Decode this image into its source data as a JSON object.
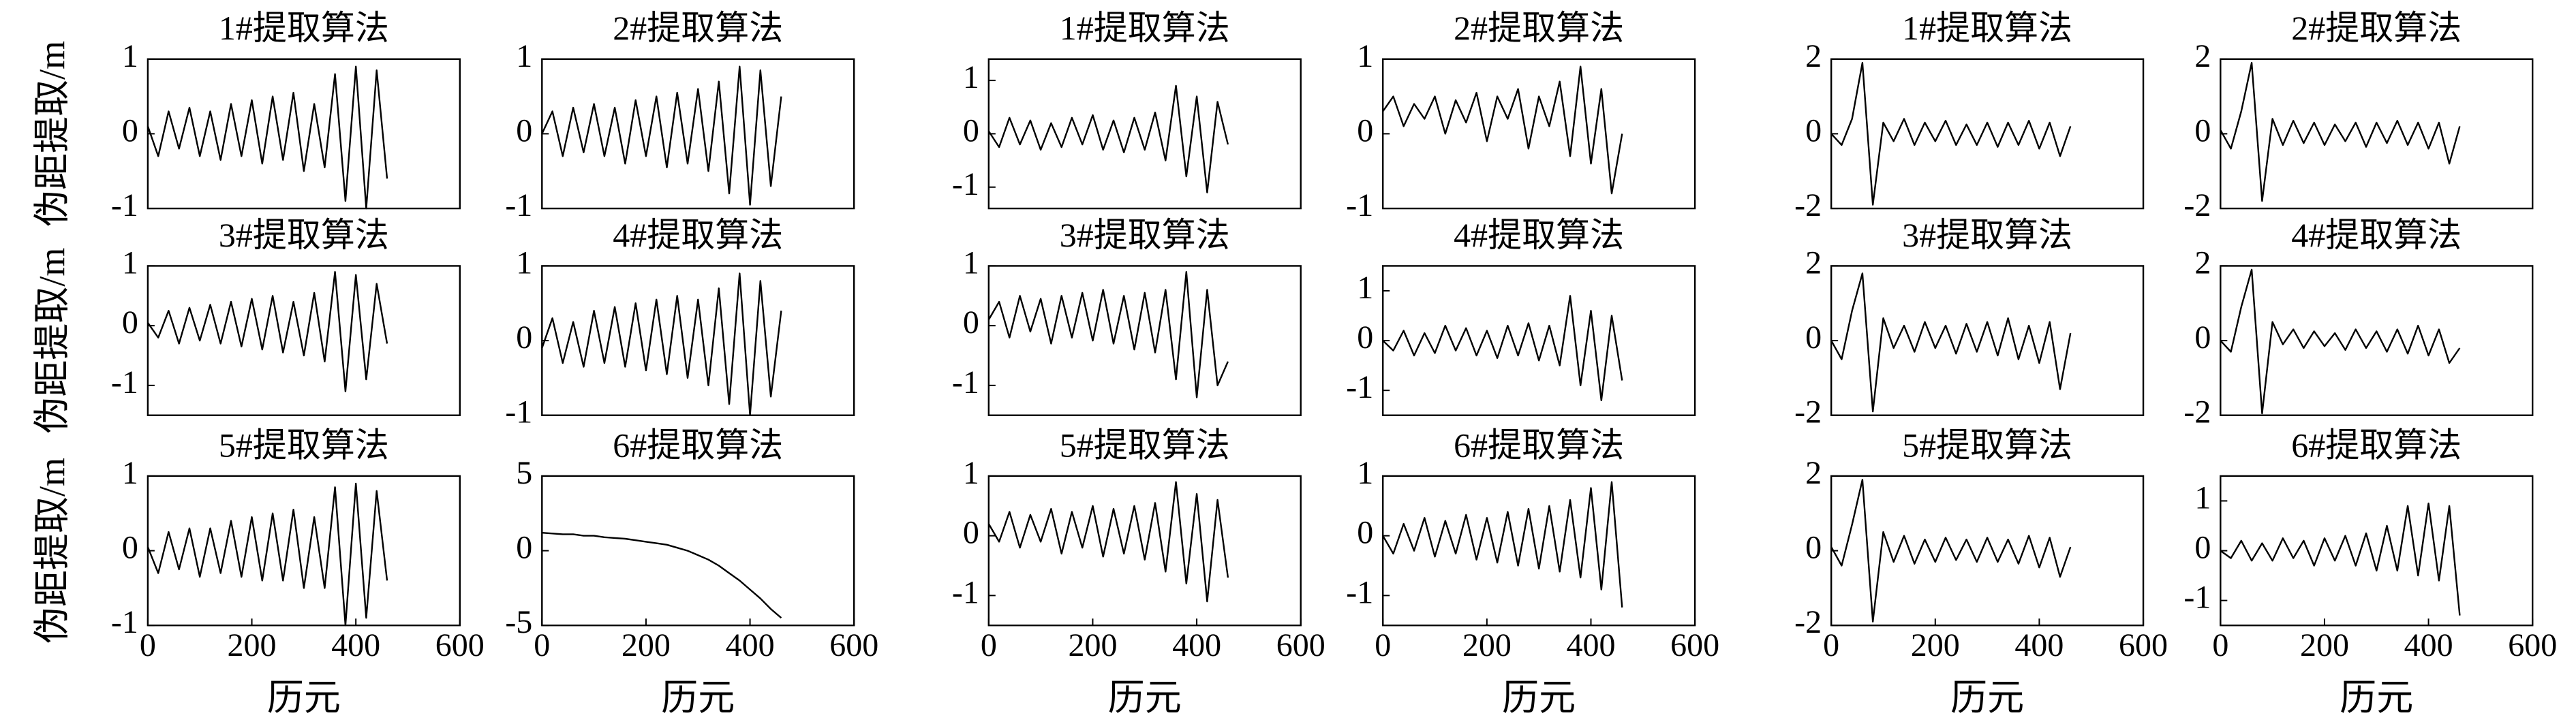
{
  "chart_data": [
    {
      "type": "line",
      "title": "1#提取算法",
      "ylabel": "伪距提取/m",
      "color": "#000000",
      "xlim": [
        0,
        600
      ],
      "ylim": [
        -1,
        1
      ],
      "yticks": [
        -1,
        0,
        1
      ],
      "x": [
        0,
        20,
        40,
        60,
        80,
        100,
        120,
        140,
        160,
        180,
        200,
        220,
        240,
        260,
        280,
        300,
        320,
        340,
        360,
        380,
        400,
        420,
        440,
        460
      ],
      "values": [
        0.1,
        -0.3,
        0.3,
        -0.2,
        0.35,
        -0.3,
        0.3,
        -0.35,
        0.4,
        -0.3,
        0.45,
        -0.4,
        0.5,
        -0.35,
        0.55,
        -0.5,
        0.4,
        -0.45,
        0.8,
        -0.9,
        0.9,
        -1.0,
        0.85,
        -0.6
      ]
    },
    {
      "type": "line",
      "title": "2#提取算法",
      "color": "#000000",
      "xlim": [
        0,
        600
      ],
      "ylim": [
        -1,
        1
      ],
      "yticks": [
        -1,
        0,
        1
      ],
      "x": [
        0,
        20,
        40,
        60,
        80,
        100,
        120,
        140,
        160,
        180,
        200,
        220,
        240,
        260,
        280,
        300,
        320,
        340,
        360,
        380,
        400,
        420,
        440,
        460
      ],
      "values": [
        0,
        0.3,
        -0.3,
        0.35,
        -0.25,
        0.4,
        -0.3,
        0.35,
        -0.4,
        0.45,
        -0.3,
        0.5,
        -0.45,
        0.55,
        -0.4,
        0.6,
        -0.5,
        0.7,
        -0.8,
        0.9,
        -0.95,
        0.85,
        -0.7,
        0.5
      ]
    },
    {
      "type": "line",
      "title": "3#提取算法",
      "ylabel": "伪距提取/m",
      "color": "#000000",
      "xlim": [
        0,
        600
      ],
      "ylim": [
        -1.5,
        1
      ],
      "yticks": [
        -1,
        0,
        1
      ],
      "x": [
        0,
        20,
        40,
        60,
        80,
        100,
        120,
        140,
        160,
        180,
        200,
        220,
        240,
        260,
        280,
        300,
        320,
        340,
        360,
        380,
        400,
        420,
        440,
        460
      ],
      "values": [
        0.05,
        -0.2,
        0.25,
        -0.3,
        0.3,
        -0.25,
        0.35,
        -0.3,
        0.4,
        -0.35,
        0.45,
        -0.4,
        0.5,
        -0.45,
        0.4,
        -0.5,
        0.55,
        -0.6,
        0.9,
        -1.1,
        0.85,
        -0.9,
        0.7,
        -0.3
      ]
    },
    {
      "type": "line",
      "title": "4#提取算法",
      "color": "#000000",
      "xlim": [
        0,
        600
      ],
      "ylim": [
        -1,
        1
      ],
      "yticks": [
        -1,
        0,
        1
      ],
      "x": [
        0,
        20,
        40,
        60,
        80,
        100,
        120,
        140,
        160,
        180,
        200,
        220,
        240,
        260,
        280,
        300,
        320,
        340,
        360,
        380,
        400,
        420,
        440,
        460
      ],
      "values": [
        -0.1,
        0.3,
        -0.3,
        0.25,
        -0.35,
        0.4,
        -0.3,
        0.45,
        -0.35,
        0.5,
        -0.4,
        0.55,
        -0.45,
        0.6,
        -0.5,
        0.55,
        -0.6,
        0.7,
        -0.85,
        0.9,
        -1.0,
        0.8,
        -0.75,
        0.4
      ]
    },
    {
      "type": "line",
      "title": "5#提取算法",
      "ylabel": "伪距提取/m",
      "xlabel": "历元",
      "color": "#000000",
      "xlim": [
        0,
        600
      ],
      "xticks": [
        0,
        200,
        400,
        600
      ],
      "ylim": [
        -1,
        1
      ],
      "yticks": [
        -1,
        0,
        1
      ],
      "x": [
        0,
        20,
        40,
        60,
        80,
        100,
        120,
        140,
        160,
        180,
        200,
        220,
        240,
        260,
        280,
        300,
        320,
        340,
        360,
        380,
        400,
        420,
        440,
        460
      ],
      "values": [
        0.05,
        -0.3,
        0.25,
        -0.25,
        0.3,
        -0.35,
        0.3,
        -0.3,
        0.4,
        -0.35,
        0.45,
        -0.4,
        0.5,
        -0.4,
        0.55,
        -0.5,
        0.45,
        -0.5,
        0.85,
        -1.0,
        0.9,
        -0.9,
        0.8,
        -0.4
      ]
    },
    {
      "type": "line",
      "title": "6#提取算法",
      "xlabel": "历元",
      "color": "#000000",
      "xlim": [
        0,
        600
      ],
      "xticks": [
        0,
        200,
        400,
        600
      ],
      "ylim": [
        -5,
        5
      ],
      "yticks": [
        -5,
        0,
        5
      ],
      "x": [
        0,
        20,
        40,
        60,
        80,
        100,
        120,
        140,
        160,
        180,
        200,
        220,
        240,
        260,
        280,
        300,
        320,
        340,
        360,
        380,
        400,
        420,
        440,
        460
      ],
      "values": [
        1.2,
        1.15,
        1.1,
        1.1,
        1.0,
        1.0,
        0.9,
        0.85,
        0.8,
        0.7,
        0.6,
        0.5,
        0.4,
        0.2,
        0.0,
        -0.3,
        -0.6,
        -1.0,
        -1.5,
        -2.0,
        -2.6,
        -3.2,
        -3.9,
        -4.5
      ]
    },
    {
      "type": "line",
      "title": "1#提取算法",
      "color": "#000000",
      "xlim": [
        0,
        600
      ],
      "ylim": [
        -1.4,
        1.4
      ],
      "yticks": [
        -1,
        0,
        1
      ],
      "x": [
        0,
        20,
        40,
        60,
        80,
        100,
        120,
        140,
        160,
        180,
        200,
        220,
        240,
        260,
        280,
        300,
        320,
        340,
        360,
        380,
        400,
        420,
        440,
        460
      ],
      "values": [
        0.05,
        -0.25,
        0.3,
        -0.2,
        0.25,
        -0.3,
        0.2,
        -0.25,
        0.3,
        -0.2,
        0.35,
        -0.3,
        0.25,
        -0.35,
        0.3,
        -0.3,
        0.4,
        -0.5,
        0.9,
        -0.8,
        0.7,
        -1.1,
        0.6,
        -0.2
      ]
    },
    {
      "type": "line",
      "title": "2#提取算法",
      "color": "#000000",
      "xlim": [
        0,
        600
      ],
      "ylim": [
        -1,
        1
      ],
      "yticks": [
        -1,
        0,
        1
      ],
      "x": [
        0,
        20,
        40,
        60,
        80,
        100,
        120,
        140,
        160,
        180,
        200,
        220,
        240,
        260,
        280,
        300,
        320,
        340,
        360,
        380,
        400,
        420,
        440,
        460
      ],
      "values": [
        0.3,
        0.5,
        0.1,
        0.4,
        0.2,
        0.5,
        0.0,
        0.45,
        0.15,
        0.55,
        -0.1,
        0.5,
        0.2,
        0.6,
        -0.2,
        0.5,
        0.1,
        0.7,
        -0.3,
        0.9,
        -0.4,
        0.6,
        -0.8,
        0.0
      ]
    },
    {
      "type": "line",
      "title": "3#提取算法",
      "color": "#000000",
      "xlim": [
        0,
        600
      ],
      "ylim": [
        -1.5,
        1
      ],
      "yticks": [
        -1,
        0,
        1
      ],
      "x": [
        0,
        20,
        40,
        60,
        80,
        100,
        120,
        140,
        160,
        180,
        200,
        220,
        240,
        260,
        280,
        300,
        320,
        340,
        360,
        380,
        400,
        420,
        440,
        460
      ],
      "values": [
        0.1,
        0.4,
        -0.2,
        0.5,
        -0.1,
        0.45,
        -0.3,
        0.5,
        -0.2,
        0.55,
        -0.25,
        0.6,
        -0.3,
        0.5,
        -0.4,
        0.55,
        -0.45,
        0.6,
        -0.9,
        0.9,
        -1.2,
        0.6,
        -1.0,
        -0.6
      ]
    },
    {
      "type": "line",
      "title": "4#提取算法",
      "color": "#000000",
      "xlim": [
        0,
        600
      ],
      "ylim": [
        -1.5,
        1.5
      ],
      "yticks": [
        -1,
        0,
        1
      ],
      "x": [
        0,
        20,
        40,
        60,
        80,
        100,
        120,
        140,
        160,
        180,
        200,
        220,
        240,
        260,
        280,
        300,
        320,
        340,
        360,
        380,
        400,
        420,
        440,
        460
      ],
      "values": [
        0.0,
        -0.2,
        0.2,
        -0.3,
        0.15,
        -0.25,
        0.3,
        -0.2,
        0.25,
        -0.3,
        0.2,
        -0.35,
        0.3,
        -0.3,
        0.35,
        -0.4,
        0.3,
        -0.5,
        0.9,
        -0.9,
        0.6,
        -1.2,
        0.5,
        -0.8
      ]
    },
    {
      "type": "line",
      "title": "5#提取算法",
      "xlabel": "历元",
      "color": "#000000",
      "xlim": [
        0,
        600
      ],
      "xticks": [
        0,
        200,
        400,
        600
      ],
      "ylim": [
        -1.5,
        1
      ],
      "yticks": [
        -1,
        0,
        1
      ],
      "x": [
        0,
        20,
        40,
        60,
        80,
        100,
        120,
        140,
        160,
        180,
        200,
        220,
        240,
        260,
        280,
        300,
        320,
        340,
        360,
        380,
        400,
        420,
        440,
        460
      ],
      "values": [
        0.2,
        -0.1,
        0.4,
        -0.2,
        0.35,
        -0.1,
        0.45,
        -0.3,
        0.4,
        -0.2,
        0.5,
        -0.35,
        0.45,
        -0.3,
        0.5,
        -0.4,
        0.55,
        -0.6,
        0.9,
        -0.8,
        0.7,
        -1.1,
        0.6,
        -0.7
      ]
    },
    {
      "type": "line",
      "title": "6#提取算法",
      "xlabel": "历元",
      "color": "#000000",
      "xlim": [
        0,
        600
      ],
      "xticks": [
        0,
        200,
        400,
        600
      ],
      "ylim": [
        -1.5,
        1
      ],
      "yticks": [
        -1,
        0,
        1
      ],
      "x": [
        0,
        20,
        40,
        60,
        80,
        100,
        120,
        140,
        160,
        180,
        200,
        220,
        240,
        260,
        280,
        300,
        320,
        340,
        360,
        380,
        400,
        420,
        440,
        460
      ],
      "values": [
        0.0,
        -0.3,
        0.2,
        -0.25,
        0.3,
        -0.35,
        0.25,
        -0.3,
        0.35,
        -0.4,
        0.3,
        -0.45,
        0.4,
        -0.5,
        0.45,
        -0.55,
        0.5,
        -0.6,
        0.6,
        -0.7,
        0.8,
        -0.9,
        0.9,
        -1.2
      ]
    },
    {
      "type": "line",
      "title": "1#提取算法",
      "color": "#000000",
      "xlim": [
        0,
        600
      ],
      "ylim": [
        -2,
        2
      ],
      "yticks": [
        -2,
        0,
        2
      ],
      "x": [
        0,
        20,
        40,
        60,
        80,
        100,
        120,
        140,
        160,
        180,
        200,
        220,
        240,
        260,
        280,
        300,
        320,
        340,
        360,
        380,
        400,
        420,
        440,
        460
      ],
      "values": [
        0.0,
        -0.3,
        0.4,
        1.9,
        -1.9,
        0.3,
        -0.2,
        0.4,
        -0.3,
        0.3,
        -0.2,
        0.35,
        -0.3,
        0.25,
        -0.3,
        0.3,
        -0.35,
        0.3,
        -0.3,
        0.35,
        -0.4,
        0.3,
        -0.6,
        0.2
      ]
    },
    {
      "type": "line",
      "title": "2#提取算法",
      "color": "#000000",
      "xlim": [
        0,
        600
      ],
      "ylim": [
        -2,
        2
      ],
      "yticks": [
        -2,
        0,
        2
      ],
      "x": [
        0,
        20,
        40,
        60,
        80,
        100,
        120,
        140,
        160,
        180,
        200,
        220,
        240,
        260,
        280,
        300,
        320,
        340,
        360,
        380,
        400,
        420,
        440,
        460
      ],
      "values": [
        0.1,
        -0.4,
        0.6,
        1.9,
        -1.8,
        0.4,
        -0.3,
        0.35,
        -0.25,
        0.3,
        -0.3,
        0.25,
        -0.2,
        0.3,
        -0.35,
        0.3,
        -0.25,
        0.35,
        -0.3,
        0.3,
        -0.4,
        0.3,
        -0.8,
        0.2
      ]
    },
    {
      "type": "line",
      "title": "3#提取算法",
      "color": "#000000",
      "xlim": [
        0,
        600
      ],
      "ylim": [
        -2,
        2
      ],
      "yticks": [
        -2,
        0,
        2
      ],
      "x": [
        0,
        20,
        40,
        60,
        80,
        100,
        120,
        140,
        160,
        180,
        200,
        220,
        240,
        260,
        280,
        300,
        320,
        340,
        360,
        380,
        400,
        420,
        440,
        460
      ],
      "values": [
        0.0,
        -0.5,
        0.8,
        1.8,
        -1.9,
        0.6,
        -0.2,
        0.4,
        -0.3,
        0.5,
        -0.2,
        0.4,
        -0.35,
        0.45,
        -0.3,
        0.5,
        -0.4,
        0.6,
        -0.5,
        0.4,
        -0.6,
        0.5,
        -1.3,
        0.2
      ]
    },
    {
      "type": "line",
      "title": "4#提取算法",
      "color": "#000000",
      "xlim": [
        0,
        600
      ],
      "ylim": [
        -2,
        2
      ],
      "yticks": [
        -2,
        0,
        2
      ],
      "x": [
        0,
        20,
        40,
        60,
        80,
        100,
        120,
        140,
        160,
        180,
        200,
        220,
        240,
        260,
        280,
        300,
        320,
        340,
        360,
        380,
        400,
        420,
        440,
        460
      ],
      "values": [
        0.0,
        -0.3,
        0.9,
        1.9,
        -1.95,
        0.5,
        -0.1,
        0.3,
        -0.2,
        0.25,
        -0.15,
        0.2,
        -0.25,
        0.3,
        -0.2,
        0.25,
        -0.3,
        0.3,
        -0.35,
        0.4,
        -0.4,
        0.3,
        -0.6,
        -0.2
      ]
    },
    {
      "type": "line",
      "title": "5#提取算法",
      "xlabel": "历元",
      "color": "#000000",
      "xlim": [
        0,
        600
      ],
      "xticks": [
        0,
        200,
        400,
        600
      ],
      "ylim": [
        -2,
        2
      ],
      "yticks": [
        -2,
        0,
        2
      ],
      "x": [
        0,
        20,
        40,
        60,
        80,
        100,
        120,
        140,
        160,
        180,
        200,
        220,
        240,
        260,
        280,
        300,
        320,
        340,
        360,
        380,
        400,
        420,
        440,
        460
      ],
      "values": [
        0.1,
        -0.4,
        0.7,
        1.9,
        -1.9,
        0.5,
        -0.3,
        0.4,
        -0.35,
        0.3,
        -0.3,
        0.35,
        -0.25,
        0.3,
        -0.3,
        0.35,
        -0.3,
        0.3,
        -0.35,
        0.4,
        -0.45,
        0.35,
        -0.7,
        0.1
      ]
    },
    {
      "type": "line",
      "title": "6#提取算法",
      "xlabel": "历元",
      "color": "#000000",
      "xlim": [
        0,
        600
      ],
      "xticks": [
        0,
        200,
        400,
        600
      ],
      "ylim": [
        -1.5,
        1.5
      ],
      "yticks": [
        -1,
        0,
        1
      ],
      "x": [
        0,
        20,
        40,
        60,
        80,
        100,
        120,
        140,
        160,
        180,
        200,
        220,
        240,
        260,
        280,
        300,
        320,
        340,
        360,
        380,
        400,
        420,
        440,
        460
      ],
      "values": [
        0.0,
        -0.15,
        0.2,
        -0.2,
        0.15,
        -0.2,
        0.25,
        -0.15,
        0.2,
        -0.3,
        0.25,
        -0.2,
        0.3,
        -0.3,
        0.35,
        -0.4,
        0.5,
        -0.4,
        0.9,
        -0.5,
        0.95,
        -0.6,
        0.9,
        -1.3
      ]
    }
  ]
}
